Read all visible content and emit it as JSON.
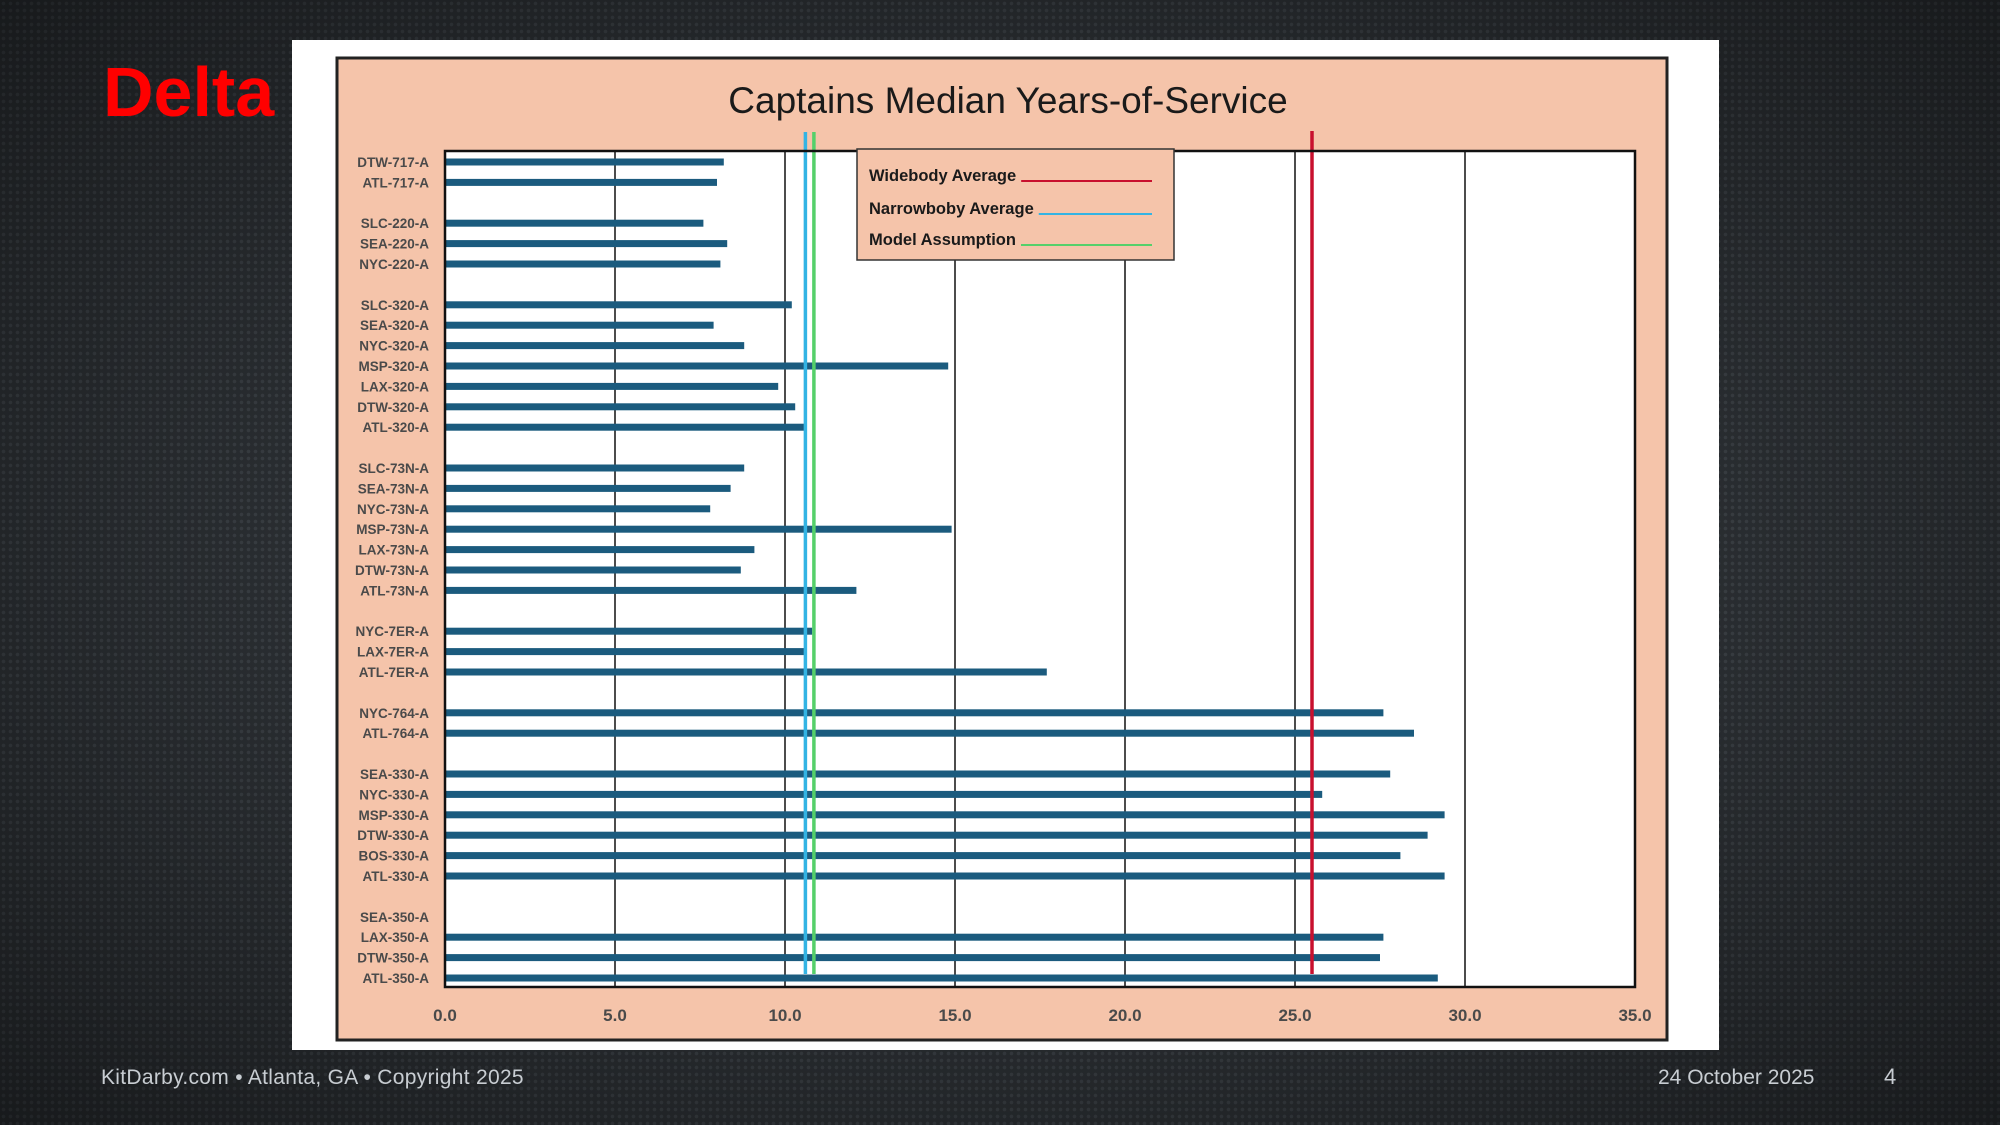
{
  "slide": {
    "title": "Delta",
    "footer_left": "KitDarby.com • Atlanta, GA • Copyright 2025",
    "footer_date": "24 October 2025",
    "page_number": "4"
  },
  "colors": {
    "chart_background": "#f5c4aa",
    "plot_background": "#ffffff",
    "bar": "#1b5b7e",
    "widebody": "#c8102e",
    "narrowbody": "#33b4e4",
    "model": "#55d06a"
  },
  "chart_data": {
    "type": "bar",
    "orientation": "horizontal",
    "title": "Captains Median Years-of-Service",
    "xlim": [
      0,
      35
    ],
    "xticks": [
      "0.0",
      "5.0",
      "10.0",
      "15.0",
      "20.0",
      "25.0",
      "30.0",
      "35.0"
    ],
    "grid": "vertical",
    "groups": [
      {
        "bars": [
          {
            "label": "DTW-717-A",
            "value": 8.2
          },
          {
            "label": "ATL-717-A",
            "value": 8.0
          }
        ]
      },
      {
        "bars": [
          {
            "label": "SLC-220-A",
            "value": 7.6
          },
          {
            "label": "SEA-220-A",
            "value": 8.3
          },
          {
            "label": "NYC-220-A",
            "value": 8.1
          }
        ]
      },
      {
        "bars": [
          {
            "label": "SLC-320-A",
            "value": 10.2
          },
          {
            "label": "SEA-320-A",
            "value": 7.9
          },
          {
            "label": "NYC-320-A",
            "value": 8.8
          },
          {
            "label": "MSP-320-A",
            "value": 14.8
          },
          {
            "label": "LAX-320-A",
            "value": 9.8
          },
          {
            "label": "DTW-320-A",
            "value": 10.3
          },
          {
            "label": "ATL-320-A",
            "value": 10.6
          }
        ]
      },
      {
        "bars": [
          {
            "label": "SLC-73N-A",
            "value": 8.8
          },
          {
            "label": "SEA-73N-A",
            "value": 8.4
          },
          {
            "label": "NYC-73N-A",
            "value": 7.8
          },
          {
            "label": "MSP-73N-A",
            "value": 14.9
          },
          {
            "label": "LAX-73N-A",
            "value": 9.1
          },
          {
            "label": "DTW-73N-A",
            "value": 8.7
          },
          {
            "label": "ATL-73N-A",
            "value": 12.1
          }
        ]
      },
      {
        "bars": [
          {
            "label": "NYC-7ER-A",
            "value": 10.8
          },
          {
            "label": "LAX-7ER-A",
            "value": 10.6
          },
          {
            "label": "ATL-7ER-A",
            "value": 17.7
          }
        ]
      },
      {
        "bars": [
          {
            "label": "NYC-764-A",
            "value": 27.6
          },
          {
            "label": "ATL-764-A",
            "value": 28.5
          }
        ]
      },
      {
        "bars": [
          {
            "label": "SEA-330-A",
            "value": 27.8
          },
          {
            "label": "NYC-330-A",
            "value": 25.8
          },
          {
            "label": "MSP-330-A",
            "value": 29.4
          },
          {
            "label": "DTW-330-A",
            "value": 28.9
          },
          {
            "label": "BOS-330-A",
            "value": 28.1
          },
          {
            "label": "ATL-330-A",
            "value": 29.4
          }
        ]
      },
      {
        "bars": [
          {
            "label": "SEA-350-A",
            "value": 0
          },
          {
            "label": "LAX-350-A",
            "value": 27.6
          },
          {
            "label": "DTW-350-A",
            "value": 27.5
          },
          {
            "label": "ATL-350-A",
            "value": 29.2
          }
        ]
      }
    ],
    "reference_lines": [
      {
        "name": "Widebody Average",
        "value": 25.5,
        "color": "#c8102e"
      },
      {
        "name": "Narrowboby Average",
        "value": 10.6,
        "color": "#33b4e4"
      },
      {
        "name": "Model Assumption",
        "value": 10.85,
        "color": "#55d06a"
      }
    ],
    "legend": {
      "position": "top-center",
      "entries": [
        "Widebody Average",
        "Narrowboby Average",
        "Model Assumption"
      ]
    }
  }
}
